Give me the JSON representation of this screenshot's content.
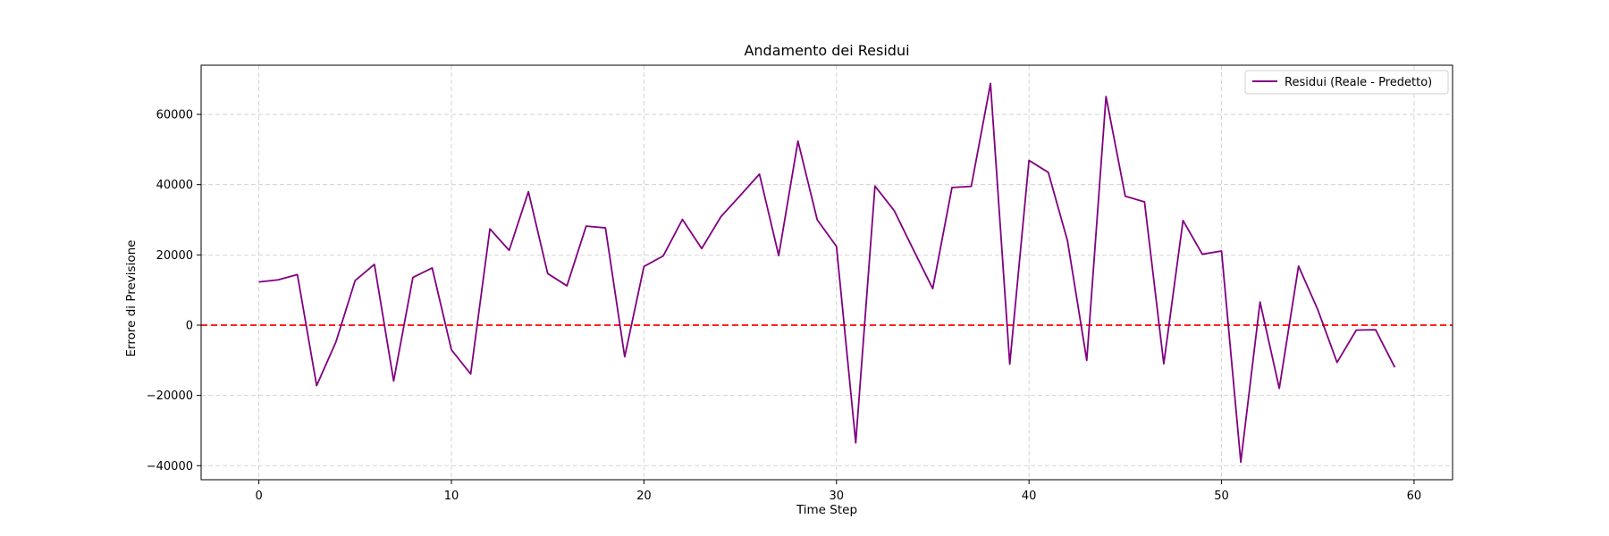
{
  "chart_data": {
    "type": "line",
    "title": "Andamento dei Residui",
    "xlabel": "Time Step",
    "ylabel": "Errore di Previsione",
    "xlim": [
      -3,
      62
    ],
    "ylim": [
      -44000,
      74000
    ],
    "xticks": [
      0,
      10,
      20,
      30,
      40,
      50,
      60
    ],
    "yticks": [
      -40000,
      -20000,
      0,
      20000,
      40000,
      60000
    ],
    "grid": true,
    "legend_position": "top-right",
    "colors": {
      "series": "#800080",
      "zero_line": "#ff0000",
      "grid": "#cccccc"
    },
    "series": [
      {
        "name": "Residui (Reale - Predetto)",
        "x": [
          0,
          1,
          2,
          3,
          4,
          5,
          6,
          7,
          8,
          9,
          10,
          11,
          12,
          13,
          14,
          15,
          16,
          17,
          18,
          19,
          20,
          21,
          22,
          23,
          24,
          25,
          26,
          27,
          28,
          29,
          30,
          31,
          32,
          33,
          34,
          35,
          36,
          37,
          38,
          39,
          40,
          41,
          42,
          43,
          44,
          45,
          46,
          47,
          48,
          49,
          50,
          51,
          52,
          53,
          54,
          55,
          56,
          57,
          58,
          59
        ],
        "values": [
          12300,
          12900,
          14400,
          -17200,
          -4800,
          12700,
          17300,
          -15900,
          13600,
          16300,
          -7000,
          -13900,
          27400,
          21300,
          38000,
          14700,
          11200,
          28200,
          27700,
          -9000,
          16700,
          19700,
          30100,
          21800,
          30900,
          36900,
          43000,
          19800,
          52400,
          30000,
          22400,
          -33500,
          39600,
          32600,
          21400,
          10400,
          39200,
          39500,
          68800,
          -11100,
          46900,
          43500,
          24000,
          -10000,
          65100,
          36700,
          35100,
          -11000,
          29800,
          20200,
          21100,
          -39000,
          6600,
          -18000,
          16800,
          4400,
          -10600,
          -1400,
          -1300,
          -12000
        ]
      }
    ],
    "reference_lines": [
      {
        "y": 0,
        "style": "dashed",
        "color": "#ff0000"
      }
    ]
  }
}
